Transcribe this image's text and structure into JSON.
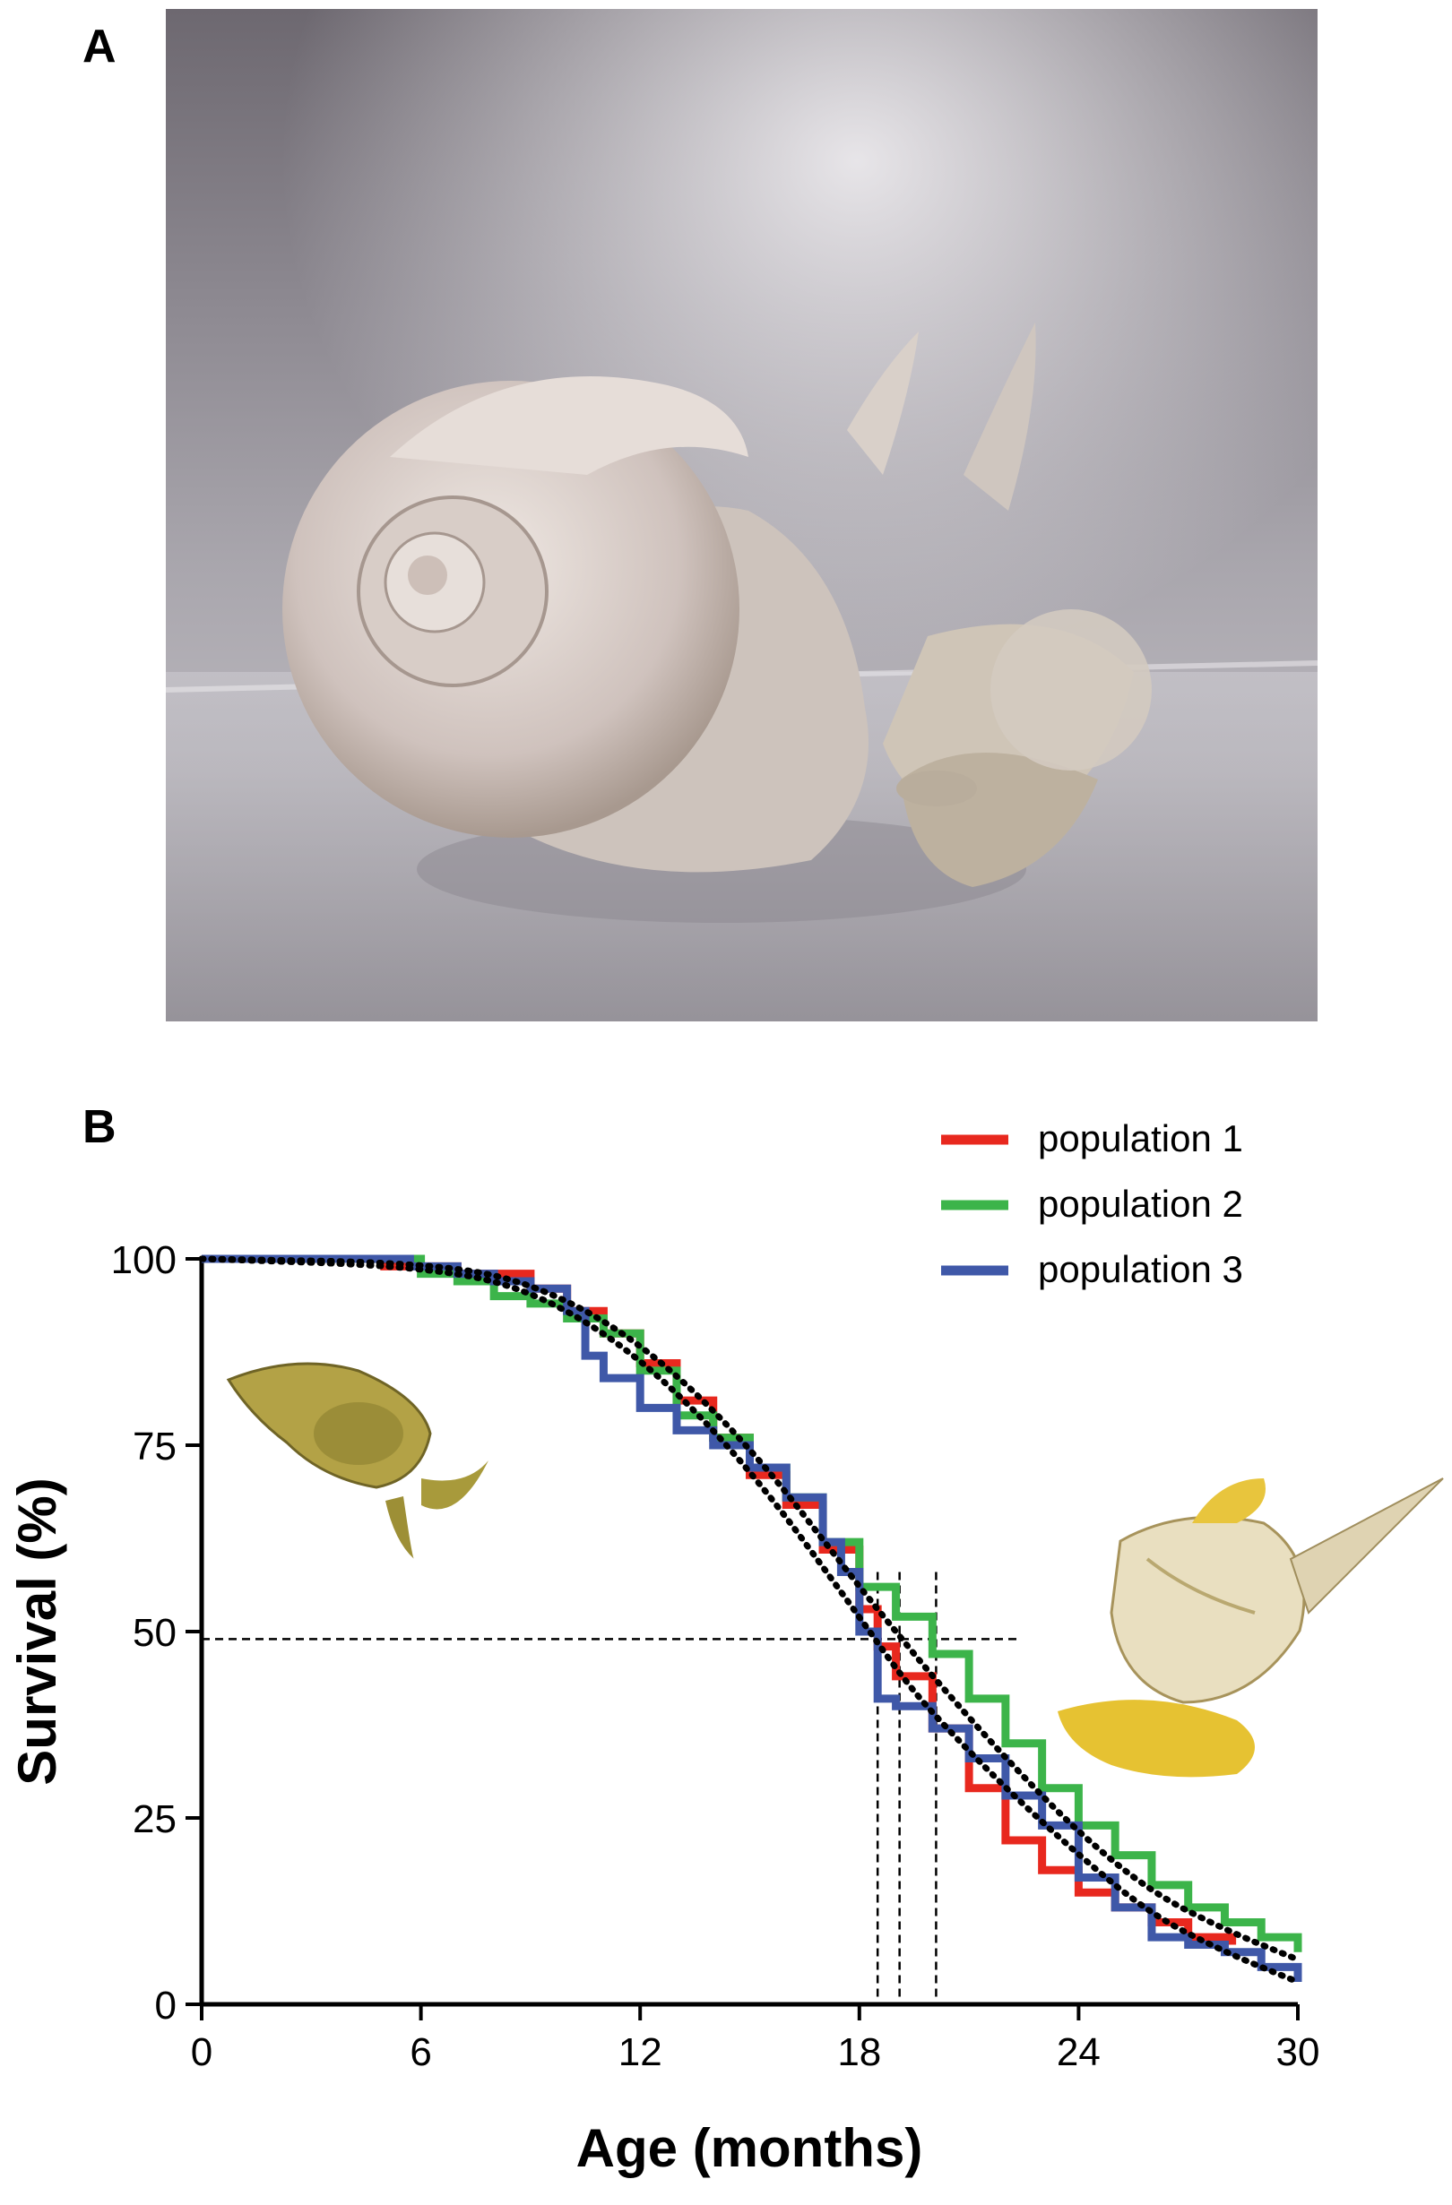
{
  "panels": {
    "a_label": "A",
    "b_label": "B"
  },
  "colors": {
    "population_1": "#e8281e",
    "population_2": "#3cb44a",
    "population_3": "#3f58a8",
    "fit": "#000000"
  },
  "chart_data": {
    "type": "line",
    "xlabel": "Age (months)",
    "ylabel": "Survival (%)",
    "xlim": [
      0,
      30
    ],
    "ylim": [
      0,
      100
    ],
    "xticks": [
      "0",
      "6",
      "12",
      "18",
      "24",
      "30"
    ],
    "yticks": [
      "0",
      "25",
      "50",
      "75",
      "100"
    ],
    "legend_position": "top-right",
    "series": [
      {
        "name": "population 1",
        "color": "#e8281e",
        "style": "step",
        "x": [
          0,
          5,
          7,
          9,
          10,
          11,
          12,
          13,
          14,
          15,
          16,
          17,
          18,
          18.5,
          19,
          20,
          21,
          22,
          23,
          24,
          25,
          26,
          27,
          28.2
        ],
        "y": [
          100,
          99,
          98,
          96,
          93,
          90,
          86,
          81,
          76,
          71,
          67,
          61,
          53,
          48,
          44,
          37,
          29,
          22,
          18,
          15,
          13,
          11,
          9,
          8
        ]
      },
      {
        "name": "population 2",
        "color": "#3cb44a",
        "style": "step",
        "x": [
          0,
          6,
          7,
          8,
          9,
          10,
          11,
          12,
          13,
          14,
          15,
          16,
          17,
          18,
          19,
          20,
          21,
          22,
          23,
          24,
          25,
          26,
          27,
          28,
          29,
          30
        ],
        "y": [
          100,
          98,
          97,
          95,
          94,
          92,
          90,
          85,
          79,
          76,
          72,
          68,
          62,
          56,
          52,
          47,
          41,
          35,
          29,
          24,
          20,
          16,
          13,
          11,
          9,
          7
        ]
      },
      {
        "name": "population 3",
        "color": "#3f58a8",
        "style": "step",
        "x": [
          0,
          5.7,
          7,
          8,
          9,
          10,
          10.5,
          11,
          12,
          13,
          14,
          15,
          16,
          17,
          17.5,
          18,
          18.5,
          19,
          20,
          21,
          22,
          23,
          24,
          25,
          26,
          27,
          28,
          29,
          30
        ],
        "y": [
          100,
          99,
          98,
          97,
          96,
          93,
          87,
          84,
          80,
          77,
          75,
          72,
          68,
          62,
          58,
          50,
          41,
          40,
          37,
          33,
          28,
          24,
          17,
          13,
          9,
          8,
          7,
          5,
          3
        ]
      }
    ],
    "fits": [
      {
        "x": [
          0,
          6,
          9,
          12,
          15,
          18,
          19,
          20,
          22,
          24,
          26,
          28,
          30
        ],
        "y": [
          100,
          99,
          96,
          87,
          72,
          52,
          45,
          39,
          29,
          20,
          12,
          7,
          3
        ]
      },
      {
        "x": [
          0,
          6,
          9,
          12,
          15,
          18,
          19,
          20,
          22,
          24,
          26,
          28,
          30
        ],
        "y": [
          100,
          99.5,
          97,
          89,
          75,
          56,
          50,
          44,
          33,
          23,
          15,
          10,
          6
        ]
      }
    ],
    "median_line": {
      "y": 49,
      "x_end": 22.3
    },
    "median_markers_x": [
      18.5,
      19.1,
      20.1
    ]
  }
}
